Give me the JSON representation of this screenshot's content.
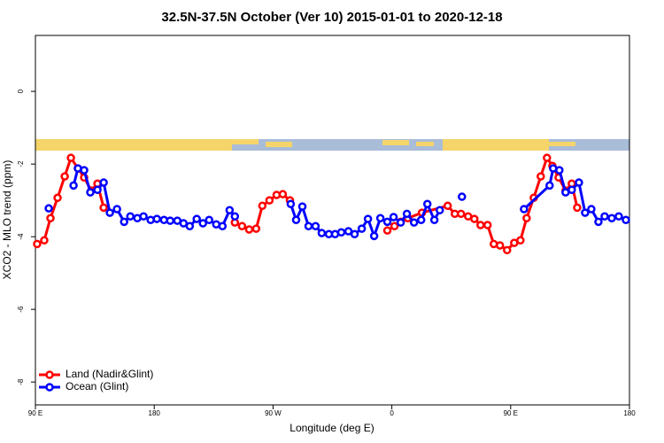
{
  "chart_data": {
    "type": "line",
    "title": "32.5N-37.5N October (Ver 10)   2015-01-01 to 2020-12-18",
    "x_label": "Longitude (deg E)",
    "y_label": "XCO2 - MLO trend (ppm)",
    "xlim": [
      90,
      540
    ],
    "xticks": [
      {
        "value": 90,
        "label": "90 E"
      },
      {
        "value": 180,
        "label": "180"
      },
      {
        "value": 270,
        "label": "90 W"
      },
      {
        "value": 360,
        "label": "0"
      },
      {
        "value": 450,
        "label": "90 E"
      },
      {
        "value": 540,
        "label": "180"
      }
    ],
    "ylim": [
      -8.63,
      1.54
    ],
    "yticks": [
      0,
      -2,
      -4,
      -6,
      -8
    ],
    "legend": "bottom-left",
    "series": [
      {
        "name": "Land (Nadir&Glint)",
        "color": "#ff0000",
        "x": [
          91.3,
          96.7,
          101.4,
          106.8,
          112.2,
          116.9,
          122.2,
          126.9,
          132.3,
          137.0,
          141.7,
          null,
          241.1,
          246.5,
          251.9,
          257.2,
          261.9,
          267.3,
          272.7,
          277.4,
          282.8,
          null,
          356.6,
          362.0,
          366.7,
          372.1,
          382.8,
          402.3,
          407.7,
          412.4,
          417.8,
          422.5,
          427.2,
          432.5,
          437.2,
          441.9,
          447.3,
          452.7,
          457.4,
          462.1,
          467.5,
          472.8,
          477.5,
          481.6,
          486.3,
          491.6,
          496.3,
          500.4
        ],
        "values": [
          -4.2,
          -4.1,
          -3.49,
          -2.93,
          -2.34,
          -1.83,
          -2.12,
          -2.37,
          -2.73,
          -2.54,
          -3.2,
          null,
          -3.61,
          -3.71,
          -3.8,
          -3.78,
          -3.15,
          -3.0,
          -2.85,
          -2.83,
          -3.0,
          null,
          -3.83,
          -3.71,
          -3.59,
          -3.49,
          -3.34,
          -3.15,
          -3.37,
          -3.37,
          -3.44,
          -3.51,
          -3.68,
          -3.68,
          -4.2,
          -4.24,
          -4.37,
          -4.17,
          -4.1,
          -3.49,
          -2.93,
          -2.34,
          -1.83,
          -2.05,
          -2.37,
          -2.73,
          -2.54,
          -3.2
        ]
      },
      {
        "name": "Ocean (Glint)",
        "color": "#0000ff",
        "x": [
          100.1,
          null,
          118.9,
          122.2,
          126.9,
          131.6,
          137.0,
          141.7,
          146.4,
          151.8,
          157.2,
          161.9,
          167.2,
          171.9,
          177.3,
          182.0,
          187.4,
          192.1,
          197.5,
          202.2,
          206.9,
          212.2,
          216.9,
          221.6,
          227.0,
          231.7,
          237.1,
          241.1,
          null,
          283.4,
          287.5,
          292.2,
          296.9,
          302.2,
          306.9,
          312.3,
          317.0,
          321.7,
          327.1,
          331.8,
          337.2,
          341.9,
          346.6,
          351.3,
          356.6,
          361.3,
          366.7,
          371.4,
          376.8,
          382.2,
          386.9,
          392.2,
          396.3,
          null,
          413.1,
          null,
          460.1,
          479.5,
          482.2,
          486.9,
          491.6,
          496.3,
          501.7,
          506.4,
          511.1,
          516.5,
          521.2,
          526.6,
          531.9,
          537.3
        ],
        "values": [
          -3.22,
          null,
          -2.59,
          -2.12,
          -2.17,
          -2.78,
          -2.71,
          -2.51,
          -3.34,
          -3.24,
          -3.59,
          -3.44,
          -3.49,
          -3.44,
          -3.54,
          -3.51,
          -3.54,
          -3.56,
          -3.56,
          -3.63,
          -3.71,
          -3.51,
          -3.63,
          -3.54,
          -3.66,
          -3.71,
          -3.27,
          -3.44,
          null,
          -3.1,
          -3.54,
          -3.17,
          -3.71,
          -3.71,
          -3.9,
          -3.93,
          -3.93,
          -3.88,
          -3.85,
          -3.93,
          -3.78,
          -3.51,
          -3.98,
          -3.49,
          -3.59,
          -3.46,
          -3.61,
          -3.37,
          -3.61,
          -3.54,
          -3.1,
          -3.54,
          -3.27,
          null,
          -2.9,
          null,
          -3.24,
          -2.59,
          -2.12,
          -2.17,
          -2.78,
          -2.71,
          -2.51,
          -3.34,
          -3.24,
          -3.59,
          -3.44,
          -3.49,
          -3.44,
          -3.54
        ]
      }
    ]
  }
}
